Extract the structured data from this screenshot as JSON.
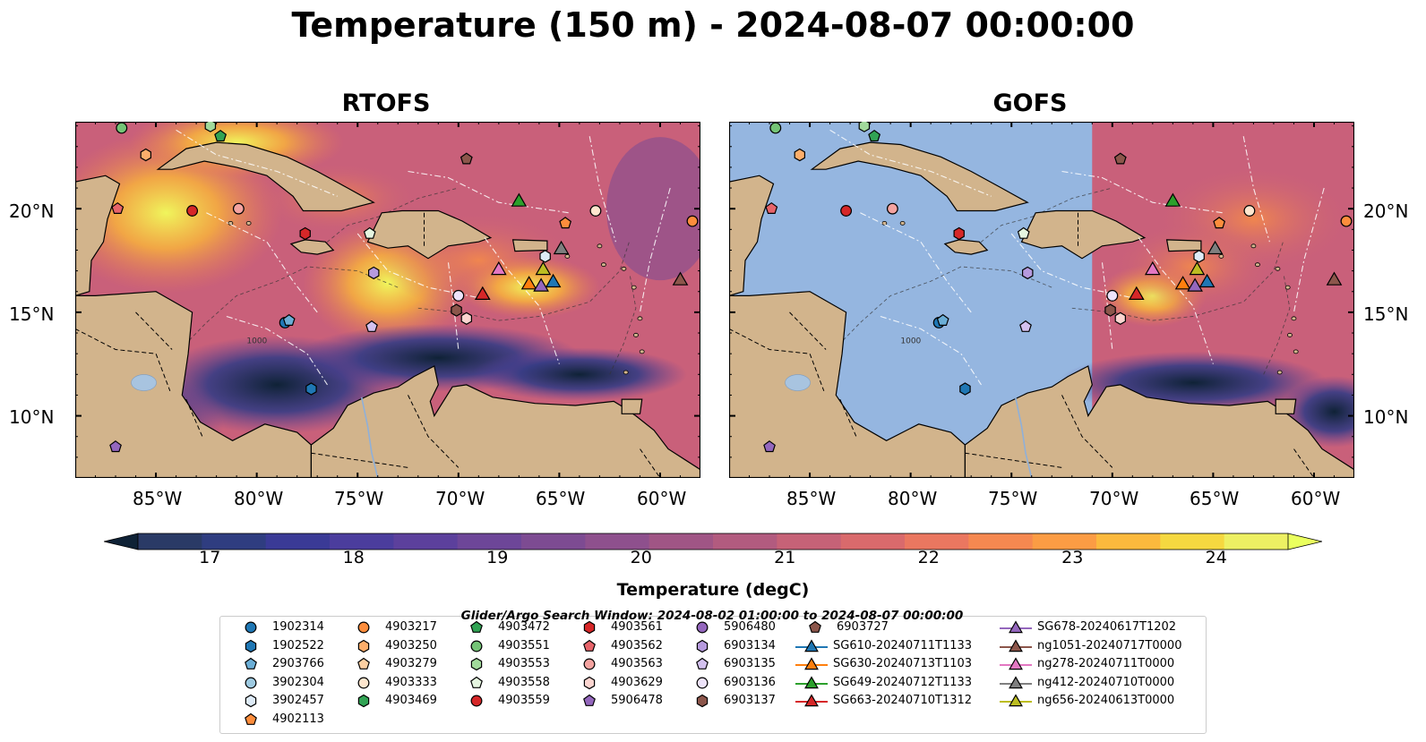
{
  "title": "Temperature (150 m) - 2024-08-07 00:00:00",
  "panels": [
    {
      "name": "RTOFS"
    },
    {
      "name": "GOFS"
    }
  ],
  "axes": {
    "lon_ticks": [
      "85°W",
      "80°W",
      "75°W",
      "70°W",
      "65°W",
      "60°W"
    ],
    "lat_ticks": [
      "20°N",
      "15°N",
      "10°N"
    ],
    "lon_range": [
      -89,
      -58
    ],
    "lat_range": [
      7,
      24.2
    ]
  },
  "colorbar": {
    "label": "Temperature (degC)",
    "ticks": [
      "17",
      "18",
      "19",
      "20",
      "21",
      "22",
      "23",
      "24"
    ],
    "min": 16.5,
    "max": 24.5,
    "colors": [
      "#2a3a66",
      "#2f3d80",
      "#3a3a96",
      "#4b3d9d",
      "#5c409c",
      "#6d4698",
      "#7d4b92",
      "#8e508d",
      "#a05585",
      "#b25b7f",
      "#c66277",
      "#d96a6c",
      "#ea7760",
      "#f58850",
      "#fb9c44",
      "#fbb93d",
      "#f5d840",
      "#edf063"
    ],
    "extend_low_color": "#0f2236",
    "extend_high_color": "#eaff5e"
  },
  "bathymetry_label": "1000",
  "search_window": "Glider/Argo Search Window: 2024-08-02 01:00:00 to 2024-08-07 00:00:00",
  "legend": {
    "argo": [
      {
        "id": "1902314",
        "shape": "circle",
        "color": "#1f77b4"
      },
      {
        "id": "1902522",
        "shape": "hexagon",
        "color": "#1f77b4"
      },
      {
        "id": "2903766",
        "shape": "pentagon",
        "color": "#6baed6"
      },
      {
        "id": "3902304",
        "shape": "circle",
        "color": "#9ecae1"
      },
      {
        "id": "3902457",
        "shape": "hexagon",
        "color": "#deebf7"
      },
      {
        "id": "4902113",
        "shape": "pentagon",
        "color": "#fd8d3c"
      },
      {
        "id": "4903217",
        "shape": "circle",
        "color": "#fd8d3c"
      },
      {
        "id": "4903250",
        "shape": "hexagon",
        "color": "#fdae6b"
      },
      {
        "id": "4903279",
        "shape": "pentagon",
        "color": "#fdd0a2"
      },
      {
        "id": "4903333",
        "shape": "circle",
        "color": "#fee6ce"
      },
      {
        "id": "4903469",
        "shape": "hexagon",
        "color": "#31a354"
      },
      {
        "id": "4903472",
        "shape": "pentagon",
        "color": "#31a354"
      },
      {
        "id": "4903551",
        "shape": "circle",
        "color": "#74c476"
      },
      {
        "id": "4903553",
        "shape": "hexagon",
        "color": "#a1d99b"
      },
      {
        "id": "4903558",
        "shape": "pentagon",
        "color": "#e5f5e0"
      },
      {
        "id": "4903559",
        "shape": "circle",
        "color": "#d62728"
      },
      {
        "id": "4903561",
        "shape": "hexagon",
        "color": "#d62728"
      },
      {
        "id": "4903562",
        "shape": "pentagon",
        "color": "#e7646a"
      },
      {
        "id": "4903563",
        "shape": "circle",
        "color": "#f4a3a0"
      },
      {
        "id": "4903629",
        "shape": "hexagon",
        "color": "#fcd5d0"
      },
      {
        "id": "5906478",
        "shape": "pentagon",
        "color": "#9467bd"
      },
      {
        "id": "5906480",
        "shape": "circle",
        "color": "#9467bd"
      },
      {
        "id": "6903134",
        "shape": "hexagon",
        "color": "#b69ade"
      },
      {
        "id": "6903135",
        "shape": "pentagon",
        "color": "#d3c1ef"
      },
      {
        "id": "6903136",
        "shape": "circle",
        "color": "#ede3fa"
      },
      {
        "id": "6903137",
        "shape": "hexagon",
        "color": "#8c564b"
      },
      {
        "id": "6903727",
        "shape": "pentagon",
        "color": "#8c564b"
      }
    ],
    "gliders": [
      {
        "id": "SG610-20240711T1133",
        "color": "#1f77b4"
      },
      {
        "id": "SG630-20240713T1103",
        "color": "#ff7f0e"
      },
      {
        "id": "SG649-20240712T1133",
        "color": "#2ca02c"
      },
      {
        "id": "SG663-20240710T1312",
        "color": "#d62728"
      },
      {
        "id": "SG678-20240617T1202",
        "color": "#9467bd"
      },
      {
        "id": "ng1051-20240717T0000",
        "color": "#8c564b"
      },
      {
        "id": "ng278-20240711T0000",
        "color": "#e377c2"
      },
      {
        "id": "ng412-20240710T0000",
        "color": "#7f7f7f"
      },
      {
        "id": "ng656-20240613T0000",
        "color": "#bcbd22"
      }
    ]
  },
  "map_markers": {
    "argo": [
      {
        "id": "1902314",
        "lon": -78.6,
        "lat": 14.5
      },
      {
        "id": "1902522",
        "lon": -77.3,
        "lat": 11.3
      },
      {
        "id": "2903766",
        "lon": -78.4,
        "lat": 14.6
      },
      {
        "id": "3902457",
        "lon": -65.7,
        "lat": 17.7
      },
      {
        "id": "4902113",
        "lon": -64.7,
        "lat": 19.3
      },
      {
        "id": "4903217",
        "lon": -58.4,
        "lat": 19.4
      },
      {
        "id": "4903250",
        "lon": -85.5,
        "lat": 22.6
      },
      {
        "id": "4903333",
        "lon": -63.2,
        "lat": 19.9
      },
      {
        "id": "4903472",
        "lon": -81.8,
        "lat": 23.5
      },
      {
        "id": "4903551",
        "lon": -86.7,
        "lat": 23.9
      },
      {
        "id": "4903553",
        "lon": -82.3,
        "lat": 24.0
      },
      {
        "id": "4903558",
        "lon": -74.4,
        "lat": 18.8
      },
      {
        "id": "4903559",
        "lon": -83.2,
        "lat": 19.9
      },
      {
        "id": "4903561",
        "lon": -77.6,
        "lat": 18.8
      },
      {
        "id": "4903562",
        "lon": -86.9,
        "lat": 20.0
      },
      {
        "id": "4903563",
        "lon": -80.9,
        "lat": 20.0
      },
      {
        "id": "4903629",
        "lon": -69.6,
        "lat": 14.7
      },
      {
        "id": "5906478",
        "lon": -87.0,
        "lat": 8.5
      },
      {
        "id": "6903134",
        "lon": -74.2,
        "lat": 16.9
      },
      {
        "id": "6903135",
        "lon": -74.3,
        "lat": 14.3
      },
      {
        "id": "6903136",
        "lon": -70.0,
        "lat": 15.8
      },
      {
        "id": "6903137",
        "lon": -70.1,
        "lat": 15.1
      },
      {
        "id": "6903727",
        "lon": -69.6,
        "lat": 22.4
      }
    ],
    "gliders": [
      {
        "id": "SG610-20240711T1133",
        "lon": -65.3,
        "lat": 16.5
      },
      {
        "id": "SG630-20240713T1103",
        "lon": -66.5,
        "lat": 16.4
      },
      {
        "id": "SG649-20240712T1133",
        "lon": -67.0,
        "lat": 20.4
      },
      {
        "id": "SG663-20240710T1312",
        "lon": -68.8,
        "lat": 15.9
      },
      {
        "id": "SG678-20240617T1202",
        "lon": -65.9,
        "lat": 16.3
      },
      {
        "id": "ng1051-20240717T0000",
        "lon": -59.0,
        "lat": 16.6
      },
      {
        "id": "ng278-20240711T0000",
        "lon": -68.0,
        "lat": 17.1
      },
      {
        "id": "ng412-20240710T0000",
        "lon": -64.9,
        "lat": 18.1
      },
      {
        "id": "ng656-20240613T0000",
        "lon": -65.8,
        "lat": 17.1
      }
    ]
  }
}
